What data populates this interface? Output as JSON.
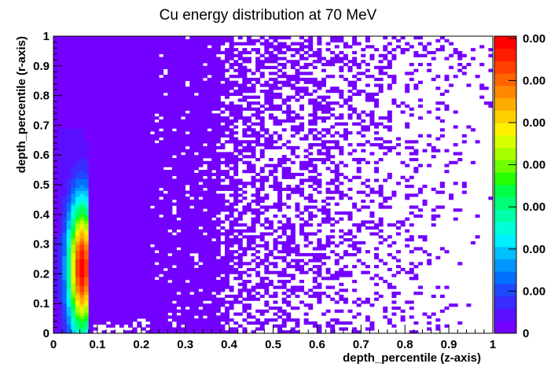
{
  "chart_data": {
    "type": "heatmap",
    "title": "Cu energy distribution at 70 MeV",
    "xlabel": "depth_percentile (z-axis)",
    "ylabel": "depth_percentile (r-axis)",
    "xlim": [
      0,
      1
    ],
    "ylim": [
      0,
      1
    ],
    "x_ticks": [
      "0",
      "0.1",
      "0.2",
      "0.3",
      "0.4",
      "0.5",
      "0.6",
      "0.7",
      "0.8",
      "0.9",
      "1"
    ],
    "y_ticks": [
      "0",
      "0.1",
      "0.2",
      "0.3",
      "0.4",
      "0.5",
      "0.6",
      "0.7",
      "0.8",
      "0.9",
      "1"
    ],
    "colorbar_labels": [
      "0",
      "0.00",
      "0.00",
      "0.00",
      "0.00",
      "0.00",
      "0.00",
      "0.00"
    ],
    "colorbar_palette": [
      "#7400ff",
      "#5a10ff",
      "#3a2cff",
      "#1f48ff",
      "#0070ff",
      "#0098ff",
      "#00c0ff",
      "#00f0ff",
      "#00ffd8",
      "#00ffa8",
      "#00ff78",
      "#00ff48",
      "#28ff00",
      "#70ff00",
      "#a8ff00",
      "#d8ff00",
      "#fff000",
      "#ffd000",
      "#ffac00",
      "#ff8800",
      "#ff6400",
      "#ff4000",
      "#ff1c00",
      "#ff0000"
    ],
    "bins": {
      "x": 100,
      "y": 100
    },
    "hotspot": {
      "x": 0.065,
      "y": 0.22,
      "x_extent": 0.08,
      "y_extent": 0.69
    },
    "grid": false
  }
}
